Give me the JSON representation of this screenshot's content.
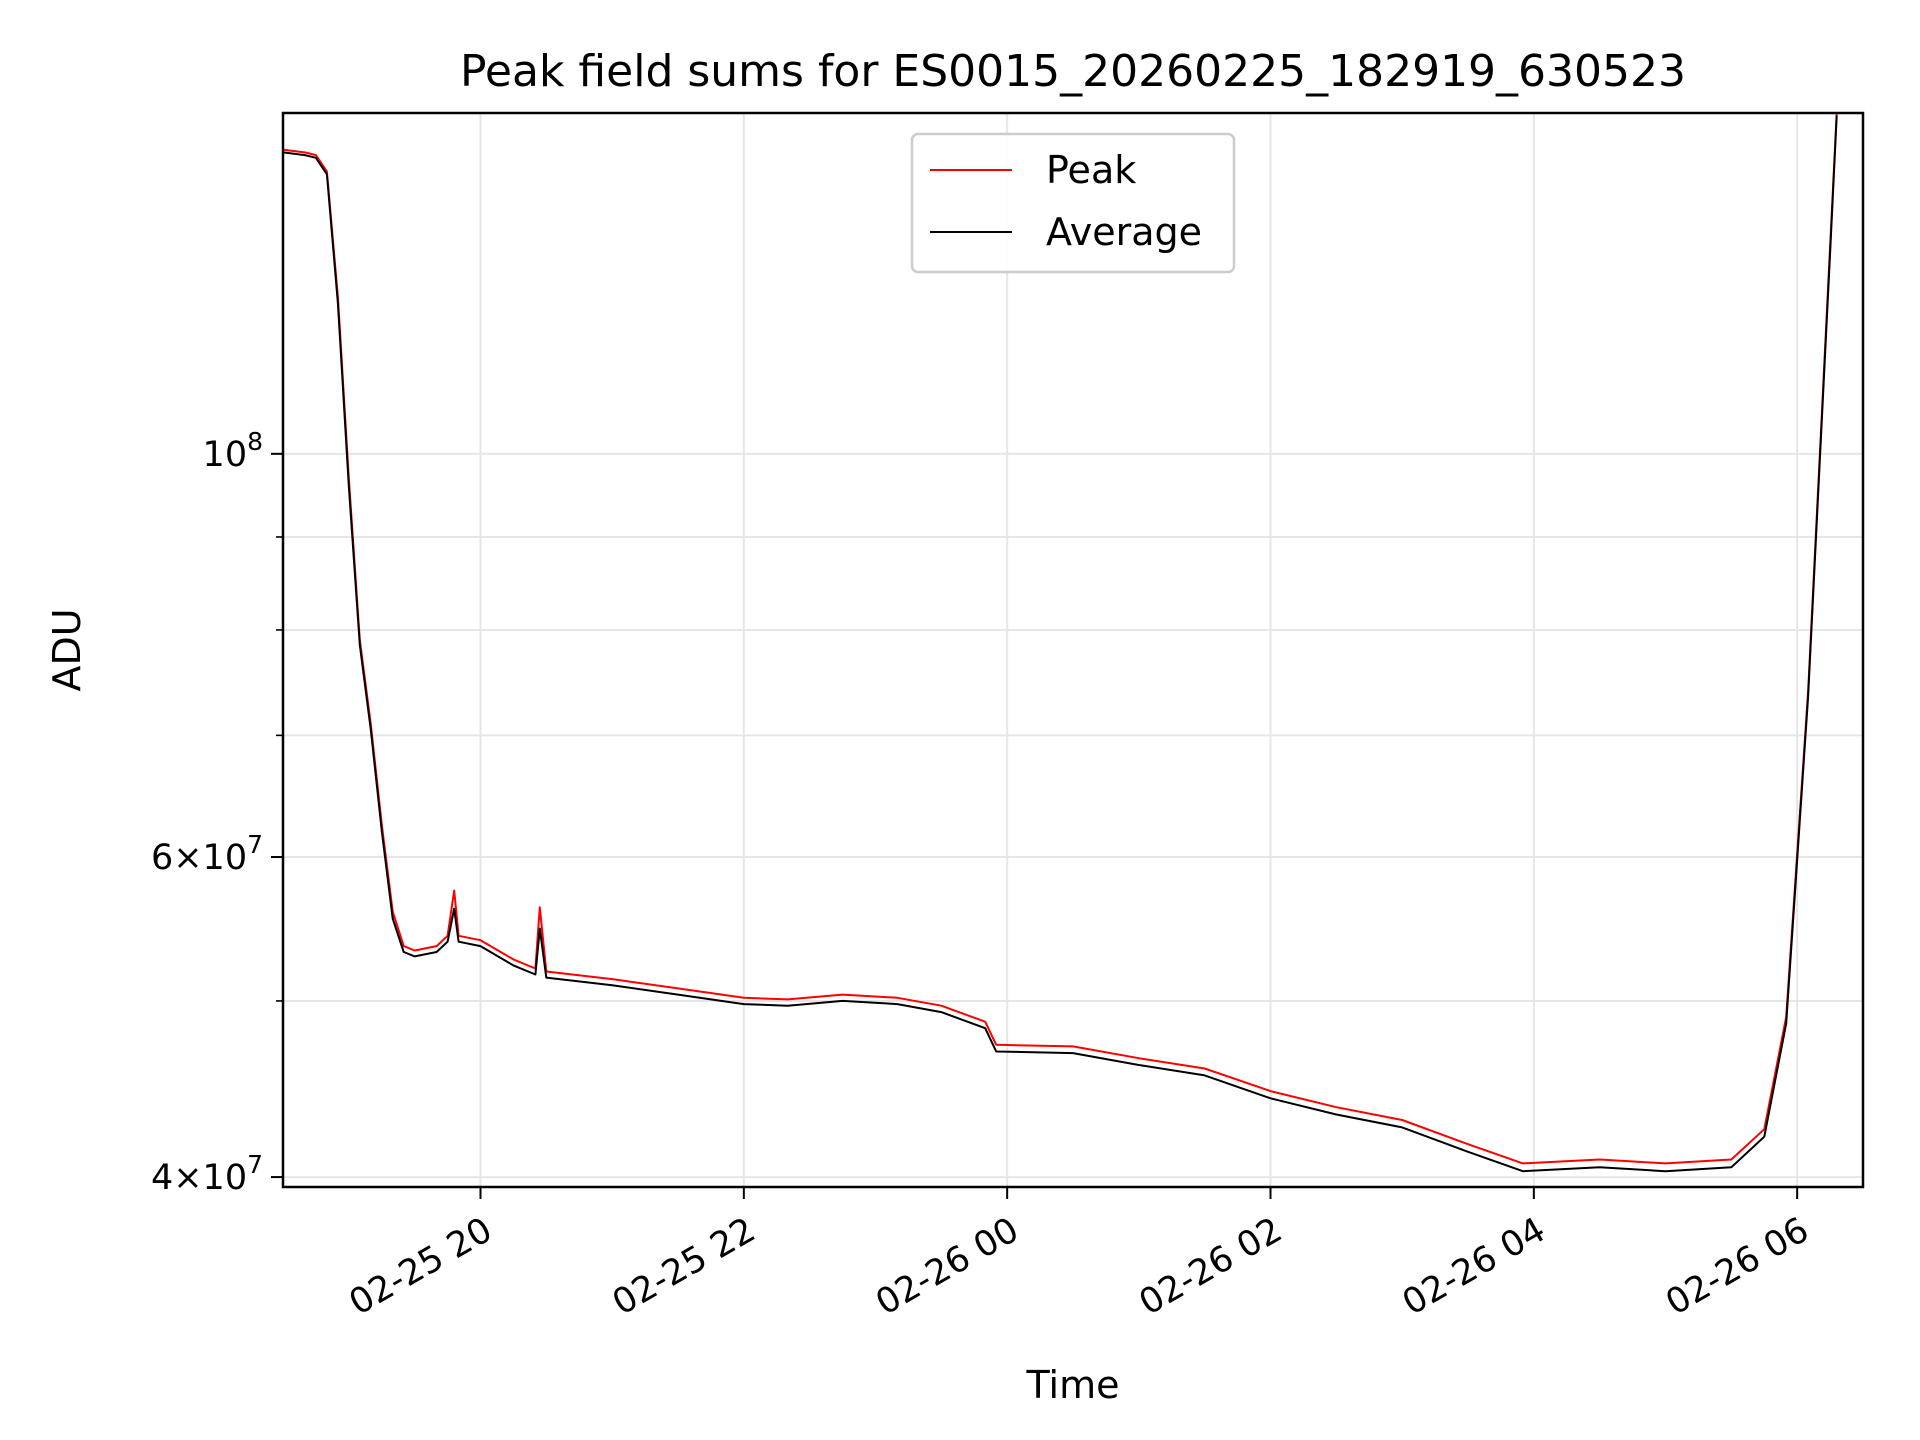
{
  "chart_data": {
    "type": "line",
    "title": "Peak field sums for ES0015_20260225_182919_630523",
    "xlabel": "Time",
    "ylabel": "ADU",
    "yscale": "log",
    "xlim": [
      "2026-02-25 18:30",
      "2026-02-26 06:30"
    ],
    "ylim": [
      39500000,
      154000000
    ],
    "grid": true,
    "legend_placement": "upper-center",
    "x_ticks": [
      {
        "value": "2026-02-25 20:00",
        "label": "02-25 20"
      },
      {
        "value": "2026-02-25 22:00",
        "label": "02-25 22"
      },
      {
        "value": "2026-02-26 00:00",
        "label": "02-26 00"
      },
      {
        "value": "2026-02-26 02:00",
        "label": "02-26 02"
      },
      {
        "value": "2026-02-26 04:00",
        "label": "02-26 04"
      },
      {
        "value": "2026-02-26 06:00",
        "label": "02-26 06"
      }
    ],
    "y_ticks_major": [
      {
        "value": 40000000,
        "base": "4",
        "exp": "7"
      },
      {
        "value": 60000000,
        "base": "6",
        "exp": "7"
      },
      {
        "value": 100000000,
        "base": "",
        "exp": "8"
      }
    ],
    "y_ticks_minor": [
      50000000,
      70000000,
      80000000,
      90000000
    ],
    "series": [
      {
        "name": "Peak",
        "color": "#ff0000",
        "x": [
          "2026-02-25 18:30",
          "2026-02-25 18:40",
          "2026-02-25 18:45",
          "2026-02-25 18:50",
          "2026-02-25 18:55",
          "2026-02-25 19:00",
          "2026-02-25 19:05",
          "2026-02-25 19:10",
          "2026-02-25 19:15",
          "2026-02-25 19:20",
          "2026-02-25 19:25",
          "2026-02-25 19:30",
          "2026-02-25 19:40",
          "2026-02-25 19:45",
          "2026-02-25 19:48",
          "2026-02-25 19:50",
          "2026-02-25 20:00",
          "2026-02-25 20:15",
          "2026-02-25 20:25",
          "2026-02-25 20:27",
          "2026-02-25 20:30",
          "2026-02-25 21:00",
          "2026-02-25 21:30",
          "2026-02-25 22:00",
          "2026-02-25 22:20",
          "2026-02-25 22:45",
          "2026-02-25 23:10",
          "2026-02-25 23:30",
          "2026-02-25 23:50",
          "2026-02-25 23:55",
          "2026-02-26 00:30",
          "2026-02-26 01:00",
          "2026-02-26 01:30",
          "2026-02-26 02:00",
          "2026-02-26 02:30",
          "2026-02-26 03:00",
          "2026-02-26 03:30",
          "2026-02-26 03:55",
          "2026-02-26 04:30",
          "2026-02-26 05:00",
          "2026-02-26 05:30",
          "2026-02-26 05:45",
          "2026-02-26 05:55",
          "2026-02-26 06:05",
          "2026-02-26 06:15",
          "2026-02-26 06:18"
        ],
        "values": [
          147000000,
          146500000,
          146000000,
          143000000,
          122000000,
          97000000,
          79000000,
          71000000,
          62500000,
          56000000,
          53600000,
          53300000,
          53600000,
          54300000,
          57500000,
          54300000,
          54000000,
          52700000,
          52100000,
          56300000,
          51900000,
          51400000,
          50800000,
          50200000,
          50100000,
          50400000,
          50200000,
          49700000,
          48700000,
          47300000,
          47200000,
          46500000,
          45900000,
          44600000,
          43700000,
          43000000,
          41700000,
          40700000,
          40900000,
          40700000,
          40900000,
          42500000,
          49000000,
          74000000,
          130000000,
          154000000
        ]
      },
      {
        "name": "Average",
        "color": "#000000",
        "x": [
          "2026-02-25 18:30",
          "2026-02-25 18:40",
          "2026-02-25 18:45",
          "2026-02-25 18:50",
          "2026-02-25 18:55",
          "2026-02-25 19:00",
          "2026-02-25 19:05",
          "2026-02-25 19:10",
          "2026-02-25 19:15",
          "2026-02-25 19:20",
          "2026-02-25 19:25",
          "2026-02-25 19:30",
          "2026-02-25 19:40",
          "2026-02-25 19:45",
          "2026-02-25 19:48",
          "2026-02-25 19:50",
          "2026-02-25 20:00",
          "2026-02-25 20:15",
          "2026-02-25 20:25",
          "2026-02-25 20:27",
          "2026-02-25 20:30",
          "2026-02-25 21:00",
          "2026-02-25 21:30",
          "2026-02-25 22:00",
          "2026-02-25 22:20",
          "2026-02-25 22:45",
          "2026-02-25 23:10",
          "2026-02-25 23:30",
          "2026-02-25 23:50",
          "2026-02-25 23:55",
          "2026-02-26 00:30",
          "2026-02-26 01:00",
          "2026-02-26 01:30",
          "2026-02-26 02:00",
          "2026-02-26 02:30",
          "2026-02-26 03:00",
          "2026-02-26 03:30",
          "2026-02-26 03:55",
          "2026-02-26 04:30",
          "2026-02-26 05:00",
          "2026-02-26 05:30",
          "2026-02-26 05:45",
          "2026-02-26 05:55",
          "2026-02-26 06:05",
          "2026-02-26 06:15",
          "2026-02-26 06:18"
        ],
        "values": [
          146500000,
          146000000,
          145500000,
          142500000,
          121000000,
          96000000,
          78500000,
          70500000,
          62000000,
          55500000,
          53200000,
          52900000,
          53200000,
          53900000,
          56200000,
          53900000,
          53600000,
          52300000,
          51700000,
          54800000,
          51500000,
          51000000,
          50400000,
          49800000,
          49700000,
          50000000,
          49800000,
          49300000,
          48300000,
          46900000,
          46800000,
          46100000,
          45500000,
          44200000,
          43300000,
          42600000,
          41300000,
          40300000,
          40500000,
          40300000,
          40500000,
          42100000,
          48600000,
          73500000,
          129000000,
          153500000
        ]
      }
    ]
  }
}
